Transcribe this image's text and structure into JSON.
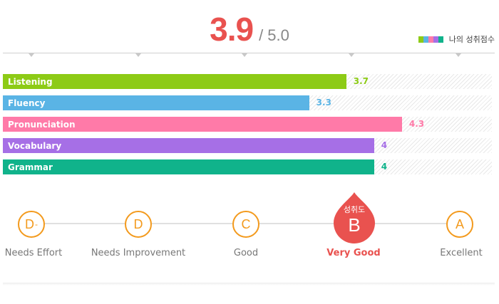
{
  "score": {
    "value": "3.9",
    "max": "/ 5.0"
  },
  "legend": {
    "label": "나의 성취점수",
    "colors": [
      "#8dcb16",
      "#5ab4e5",
      "#ff7aa8",
      "#a66fe6",
      "#10b38b"
    ]
  },
  "chart_data": {
    "type": "bar",
    "orientation": "horizontal",
    "categories": [
      "Listening",
      "Fluency",
      "Pronunciation",
      "Vocabulary",
      "Grammar"
    ],
    "values": [
      3.7,
      3.3,
      4.3,
      4,
      4
    ],
    "value_labels": [
      "3.7",
      "3.3",
      "4.3",
      "4",
      "4"
    ],
    "colors": [
      "#8dcb16",
      "#5ab4e5",
      "#ff7aa8",
      "#a66fe6",
      "#10b38b"
    ],
    "xlim": [
      0,
      5
    ],
    "grid": false
  },
  "grades": [
    {
      "letter": "D",
      "sup": "-",
      "name": "Needs Effort",
      "active": false
    },
    {
      "letter": "D",
      "sup": "",
      "name": "Needs Improvement",
      "active": false
    },
    {
      "letter": "C",
      "sup": "",
      "name": "Good",
      "active": false
    },
    {
      "letter": "B",
      "sup": "",
      "name": "Very Good",
      "active": true,
      "caption": "성취도"
    },
    {
      "letter": "A",
      "sup": "",
      "name": "Excellent",
      "active": false
    }
  ],
  "colors": {
    "accent": "#e9524f",
    "grade_ring": "#f39a1d"
  }
}
